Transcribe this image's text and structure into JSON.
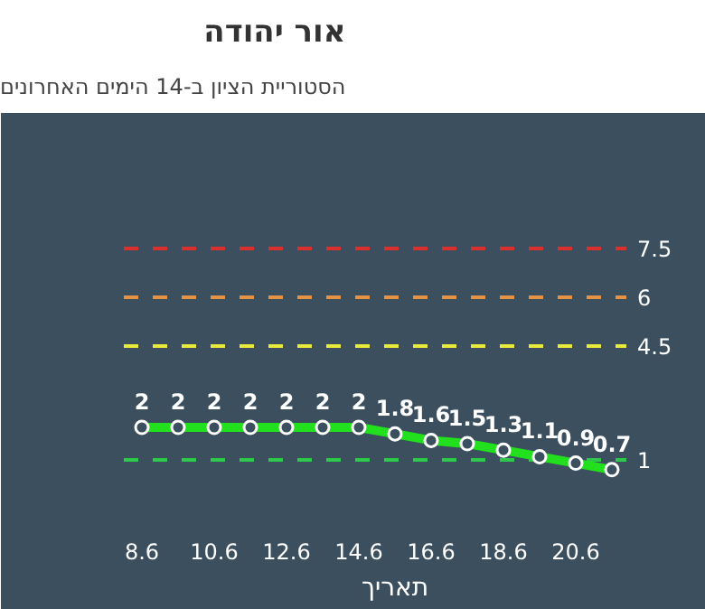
{
  "chart_data": {
    "type": "line",
    "title": "אור יהודה",
    "subtitle": "הסטוריית הציון ב-14 הימים האחרונים",
    "xlabel": "תאריך",
    "categories": [
      "8.6",
      null,
      "10.6",
      null,
      "12.6",
      null,
      "14.6",
      null,
      "16.6",
      null,
      "18.6",
      null,
      "20.6",
      null
    ],
    "series": [
      {
        "color": "#22e01e",
        "values": [
          2,
          2,
          2,
          2,
          2,
          2,
          2,
          1.8,
          1.6,
          1.5,
          1.3,
          1.1,
          0.9,
          0.7
        ]
      }
    ],
    "ylim": [
      0,
      11
    ],
    "tick_labels": "x",
    "grid": false,
    "marker": "circle",
    "line_style": "solid",
    "data_labels": true,
    "ref_lines": [
      {
        "axis": "y",
        "value": 7.5,
        "label": "7.5",
        "color": "#d9302c",
        "line_style": "dashed"
      },
      {
        "axis": "y",
        "value": 6,
        "label": "6",
        "color": "#e39440",
        "line_style": "dashed"
      },
      {
        "axis": "y",
        "value": 4.5,
        "label": "4.5",
        "color": "#eaea3a",
        "line_style": "dashed"
      },
      {
        "axis": "y",
        "value": 1,
        "label": "1",
        "color": "#2ec84a",
        "line_style": "dashed"
      }
    ]
  }
}
